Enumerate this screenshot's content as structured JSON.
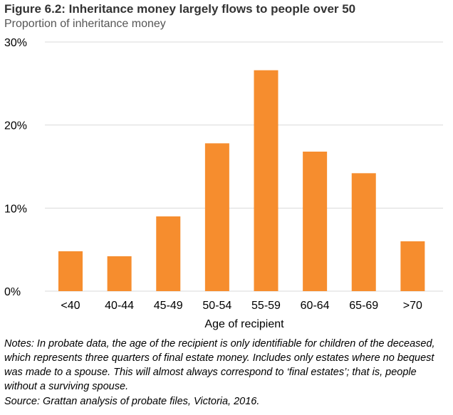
{
  "chart_data": {
    "type": "bar",
    "title": "Figure 6.2: Inheritance money largely flows to people over 50",
    "subtitle": "Proportion of inheritance money",
    "xlabel": "Age of recipient",
    "ylabel": "",
    "categories": [
      "<40",
      "40-44",
      "45-49",
      "50-54",
      "55-59",
      "60-64",
      "65-69",
      ">70"
    ],
    "values": [
      4.8,
      4.2,
      9.0,
      17.8,
      26.6,
      16.8,
      14.2,
      6.0
    ],
    "ylim": [
      0,
      30
    ],
    "yticks": [
      0,
      10,
      20,
      30
    ],
    "ytick_labels": [
      "0%",
      "10%",
      "20%",
      "30%"
    ],
    "grid": true,
    "bar_color": "#F68D2E",
    "grid_color": "#D9D9D9"
  },
  "notes": "Notes: In probate data, the age of the recipient is only identifiable for children of the deceased, which represents three quarters of final estate money. Includes only estates where no bequest was made to a spouse. This will almost always correspond to ‘final estates’; that is, people without a surviving spouse.",
  "source": "Source: Grattan analysis of probate files, Victoria, 2016."
}
